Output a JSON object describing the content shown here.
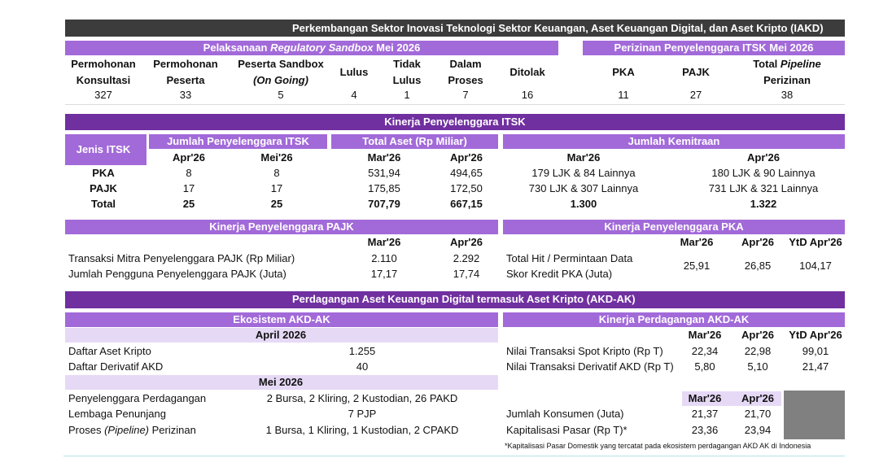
{
  "title": "Perkembangan Sektor Inovasi Teknologi Sektor Keuangan, Aset Keuangan Digital, dan Aset Kripto (IAKD)",
  "sandbox": {
    "title": [
      "Pelaksanaan",
      "Regulatory Sandbox",
      "Mei 2026"
    ],
    "headers": [
      [
        "Permohonan",
        "Konsultasi"
      ],
      [
        "Permohonan",
        "Peserta"
      ],
      [
        "Peserta Sandbox",
        "(On Going)"
      ],
      [
        "Lulus"
      ],
      [
        "Tidak",
        "Lulus"
      ],
      [
        "Dalam",
        "Proses"
      ],
      [
        "Ditolak"
      ]
    ],
    "values": [
      "327",
      "33",
      "5",
      "4",
      "1",
      "7",
      "16"
    ]
  },
  "perizinan": {
    "title": "Perizinan Penyelenggara ITSK Mei 2026",
    "headers": [
      [
        "PKA"
      ],
      [
        "PAJK"
      ],
      [
        "Total",
        "Pipeline",
        "Perizinan"
      ]
    ],
    "values": [
      "11",
      "27",
      "38"
    ]
  },
  "itsk": {
    "title": "Kinerja Penyelenggara ITSK",
    "jenis": "Jenis ITSK",
    "groups": [
      {
        "title": "Jumlah Penyelenggara ITSK",
        "periods": [
          "Apr'26",
          "Mei'26"
        ]
      },
      {
        "title": "Total Aset (Rp Miliar)",
        "periods": [
          "Mar'26",
          "Apr'26"
        ]
      },
      {
        "title": "Jumlah Kemitraan",
        "periods": [
          "Mar'26",
          "Apr'26"
        ]
      }
    ],
    "rows": [
      [
        "PKA",
        "8",
        "8",
        "531,94",
        "494,65",
        "179 LJK & 84 Lainnya",
        "180 LJK & 90 Lainnya"
      ],
      [
        "PAJK",
        "17",
        "17",
        "175,85",
        "172,50",
        "730 LJK & 307 Lainnya",
        "731 LJK & 321 Lainnya"
      ],
      [
        "Total",
        "25",
        "25",
        "707,79",
        "667,15",
        "1.300",
        "1.322"
      ]
    ]
  },
  "pajk": {
    "title": "Kinerja Penyelenggara PAJK",
    "periods": [
      "Mar'26",
      "Apr'26"
    ],
    "rows": [
      [
        "Transaksi Mitra Penyelenggara PAJK (Rp Miliar)",
        "2.110",
        "2.292"
      ],
      [
        "Jumlah Pengguna Penyelenggara PAJK (Juta)",
        "17,17",
        "17,74"
      ]
    ]
  },
  "pka": {
    "title": "Kinerja Penyelenggara PKA",
    "periods": [
      "Mar'26",
      "Apr'26",
      "YtD Apr'26"
    ],
    "labels": [
      "Total Hit / Permintaan Data",
      "Skor Kredit PKA (Juta)"
    ],
    "values": [
      "25,91",
      "26,85",
      "104,17"
    ]
  },
  "akd": {
    "title": "Perdagangan Aset Keuangan Digital termasuk Aset Kripto (AKD-AK)",
    "ekosistem": {
      "title": "Ekosistem AKD-AK",
      "sections": [
        {
          "period": "April 2026",
          "rows": [
            [
              "Daftar Aset Kripto",
              "1.255"
            ],
            [
              "Daftar Derivatif AKD",
              "40"
            ]
          ]
        },
        {
          "period": "Mei 2026",
          "rows": [
            [
              "Penyelenggara Perdagangan",
              "2 Bursa, 2 Kliring, 2 Kustodian, 26 PAKD"
            ],
            [
              "Lembaga Penunjang",
              "7 PJP"
            ],
            [
              [
                "Proses",
                "(Pipeline)",
                "Perizinan"
              ],
              "1 Bursa, 1 Kliring, 1 Kustodian, 2 CPAKD"
            ]
          ]
        }
      ]
    },
    "kinerja": {
      "title": "Kinerja Perdagangan AKD-AK",
      "periods": [
        "Mar'26",
        "Apr'26",
        "YtD Apr'26"
      ],
      "rows": [
        [
          "Nilai Transaksi Spot Kripto (Rp T)",
          "22,34",
          "22,98",
          "99,01"
        ],
        [
          "Nilai Transaksi Derivatif AKD (Rp T)",
          "5,80",
          "5,10",
          "21,47"
        ]
      ],
      "periods2": [
        "Mar'26",
        "Apr'26"
      ],
      "rows2": [
        [
          "Jumlah Konsumen (Juta)",
          "21,37",
          "21,70"
        ],
        [
          "Kapitalisasi Pasar (Rp T)*",
          "23,36",
          "23,94"
        ]
      ],
      "footnote": "*Kapitalisasi Pasar Domestik yang tercatat pada ekosistem perdagangan AKD AK di Indonesia"
    }
  }
}
